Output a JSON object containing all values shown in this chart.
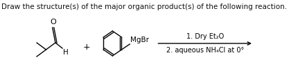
{
  "title": "Draw the structure(s) of the major organic product(s) of the following reaction.",
  "title_fontsize": 7.5,
  "title_color": "#111111",
  "bg_color": "#ffffff",
  "condition_line1": "1. Dry Et₂O",
  "condition_line2": "2. aqueous NH₄Cl at 0°",
  "plus_sign": "+",
  "mgbr_label": "MgBr",
  "aldehyde_H": "H",
  "condition_fontsize": 7.0,
  "label_O": "O"
}
